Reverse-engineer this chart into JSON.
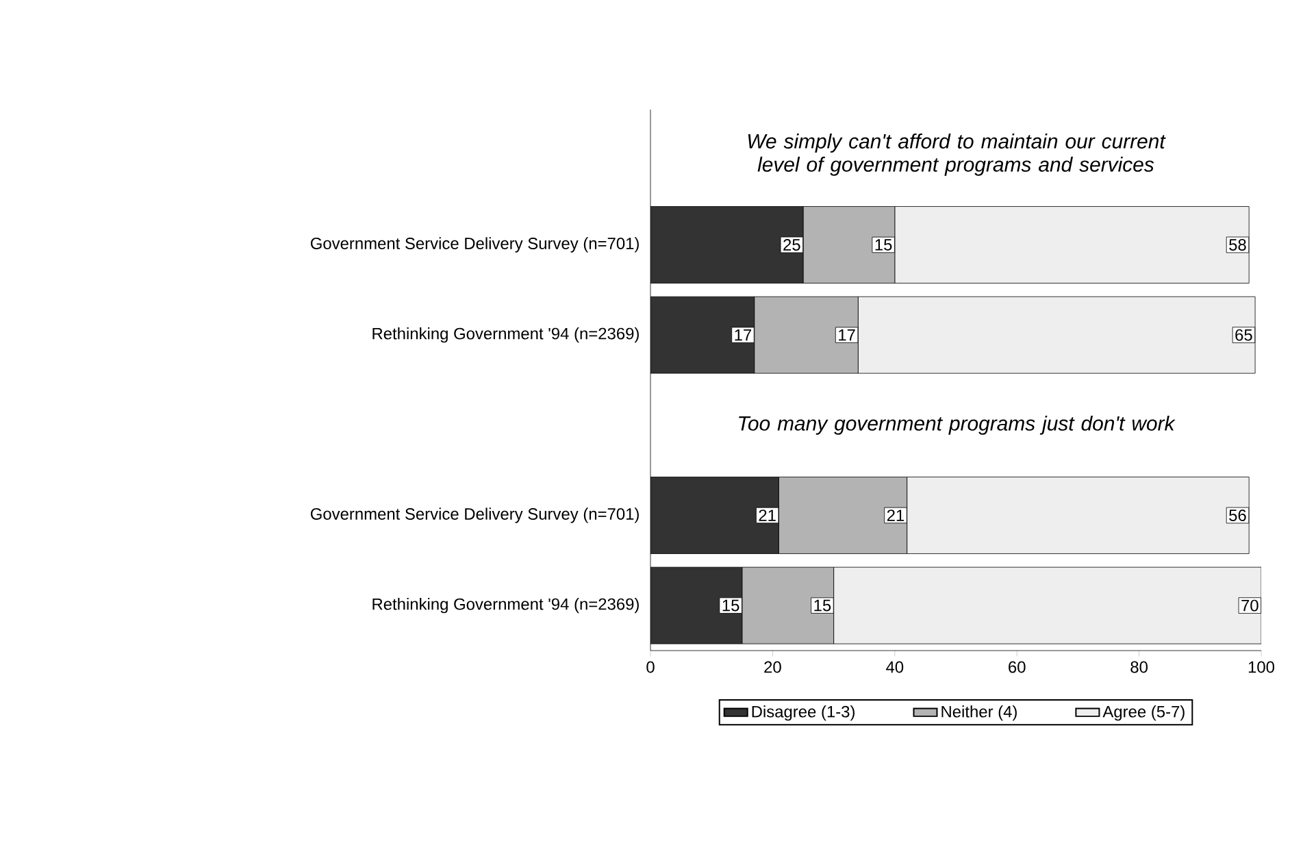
{
  "chart_data": {
    "type": "bar",
    "orientation": "horizontal",
    "stacked": true,
    "categories": [
      null,
      "Government Service Delivery Survey (n=701)",
      "Rethinking Government '94 (n=2369)",
      null,
      "Government Service Delivery Survey (n=701)",
      "Rethinking Government '94 (n=2369)"
    ],
    "series": [
      {
        "name": "Disagree (1-3)",
        "color": "#333333",
        "values": [
          null,
          25,
          17,
          null,
          21,
          15
        ]
      },
      {
        "name": "Neither (4)",
        "color": "#b3b3b3",
        "values": [
          null,
          15,
          17,
          null,
          21,
          15
        ]
      },
      {
        "name": "Agree (5-7)",
        "color": "#eeeeee",
        "values": [
          null,
          58,
          65,
          null,
          56,
          70
        ]
      }
    ],
    "annotations": [
      "We simply can't afford to maintain our current level of government programs and services",
      "Too many government programs just don't work"
    ],
    "xlim": [
      0,
      100
    ],
    "xticks": [
      0,
      20,
      40,
      60,
      80,
      100
    ],
    "data_labels": true,
    "legend": "bottom",
    "grid": false
  }
}
